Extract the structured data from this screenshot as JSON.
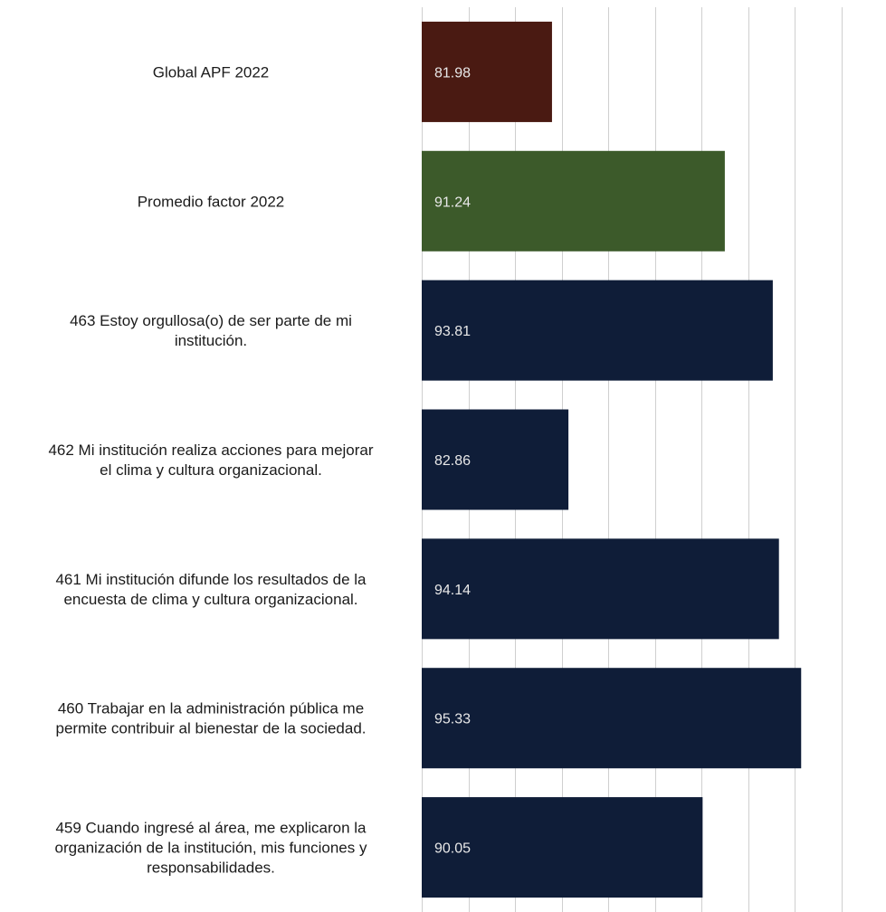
{
  "chart_data": {
    "type": "bar",
    "orientation": "horizontal",
    "title": "",
    "xlabel": "",
    "ylabel": "",
    "xlim": [
      75,
      97.5
    ],
    "grid": true,
    "legend": "none",
    "categories": [
      [
        "Global APF 2022"
      ],
      [
        "Promedio factor 2022"
      ],
      [
        "463 Estoy orgullosa(o) de ser parte de mi",
        "institución."
      ],
      [
        "462 Mi institución realiza acciones para mejorar",
        "el clima y cultura organizacional."
      ],
      [
        "461 Mi institución difunde los resultados de la",
        "encuesta de clima y cultura organizacional."
      ],
      [
        "460 Trabajar en la administración pública me",
        "permite contribuir al bienestar de la sociedad."
      ],
      [
        "459 Cuando ingresé al área, me explicaron la",
        "organización de la institución, mis funciones y",
        "responsabilidades."
      ]
    ],
    "values": [
      81.98,
      91.24,
      93.81,
      82.86,
      94.14,
      95.33,
      90.05
    ],
    "value_labels": [
      "81.98",
      "91.24",
      "93.81",
      "82.86",
      "94.14",
      "95.33",
      "90.05"
    ],
    "colors": [
      "#4a1a12",
      "#3c5a2a",
      "#0f1d38",
      "#0f1d38",
      "#0f1d38",
      "#0f1d38",
      "#0f1d38"
    ]
  }
}
